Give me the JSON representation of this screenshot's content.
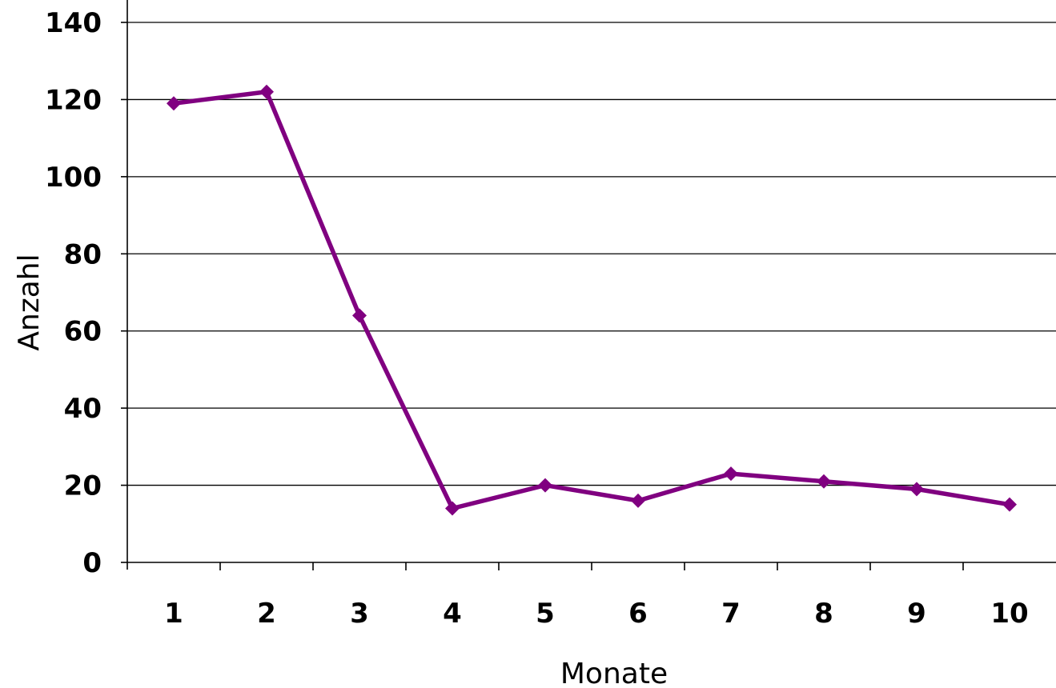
{
  "chart_data": {
    "type": "line",
    "xlabel": "Monate",
    "ylabel": "Anzahl",
    "categories": [
      "1",
      "2",
      "3",
      "4",
      "5",
      "6",
      "7",
      "8",
      "9",
      "10"
    ],
    "series": [
      {
        "values": [
          119,
          122,
          64,
          14,
          20,
          16,
          23,
          21,
          19,
          15
        ]
      }
    ],
    "ylim": [
      0,
      140
    ],
    "yticks": [
      "0",
      "20",
      "40",
      "60",
      "80",
      "100",
      "120",
      "140"
    ],
    "grid": true,
    "colors": {
      "series": "#800080",
      "axis": "#000000"
    }
  }
}
